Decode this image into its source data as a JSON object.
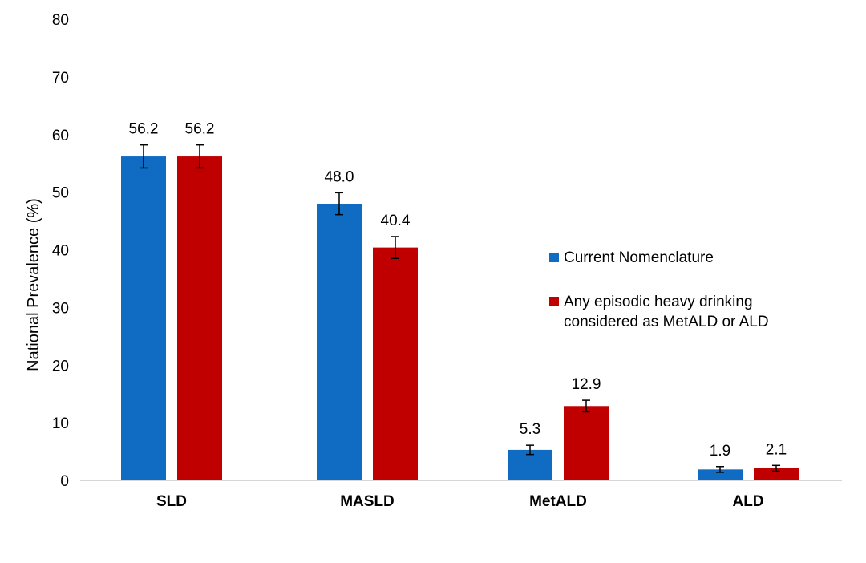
{
  "chart_data": {
    "type": "bar",
    "categories": [
      "SLD",
      "MASLD",
      "MetALD",
      "ALD"
    ],
    "series": [
      {
        "name": "Current Nomenclature",
        "color": "#0f6cc2",
        "values": [
          56.2,
          48.0,
          5.3,
          1.9
        ],
        "labels": [
          "56.2",
          "48.0",
          "5.3",
          "1.9"
        ],
        "error": [
          2.0,
          1.9,
          0.8,
          0.5
        ]
      },
      {
        "name": "Any episodic heavy drinking considered as MetALD or ALD",
        "name_lines": [
          "Any episodic heavy drinking",
          "considered as MetALD or ALD"
        ],
        "color": "#c00000",
        "values": [
          56.2,
          40.4,
          12.9,
          2.1
        ],
        "labels": [
          "56.2",
          "40.4",
          "12.9",
          "2.1"
        ],
        "error": [
          2.0,
          1.9,
          1.0,
          0.5
        ]
      }
    ],
    "title": "",
    "xlabel": "",
    "ylabel": "National Prevalence (%)",
    "ylim": [
      0,
      80
    ],
    "yticks": [
      "0",
      "10",
      "20",
      "30",
      "40",
      "50",
      "60",
      "70",
      "80"
    ],
    "grid": false,
    "legend_position": "right"
  }
}
